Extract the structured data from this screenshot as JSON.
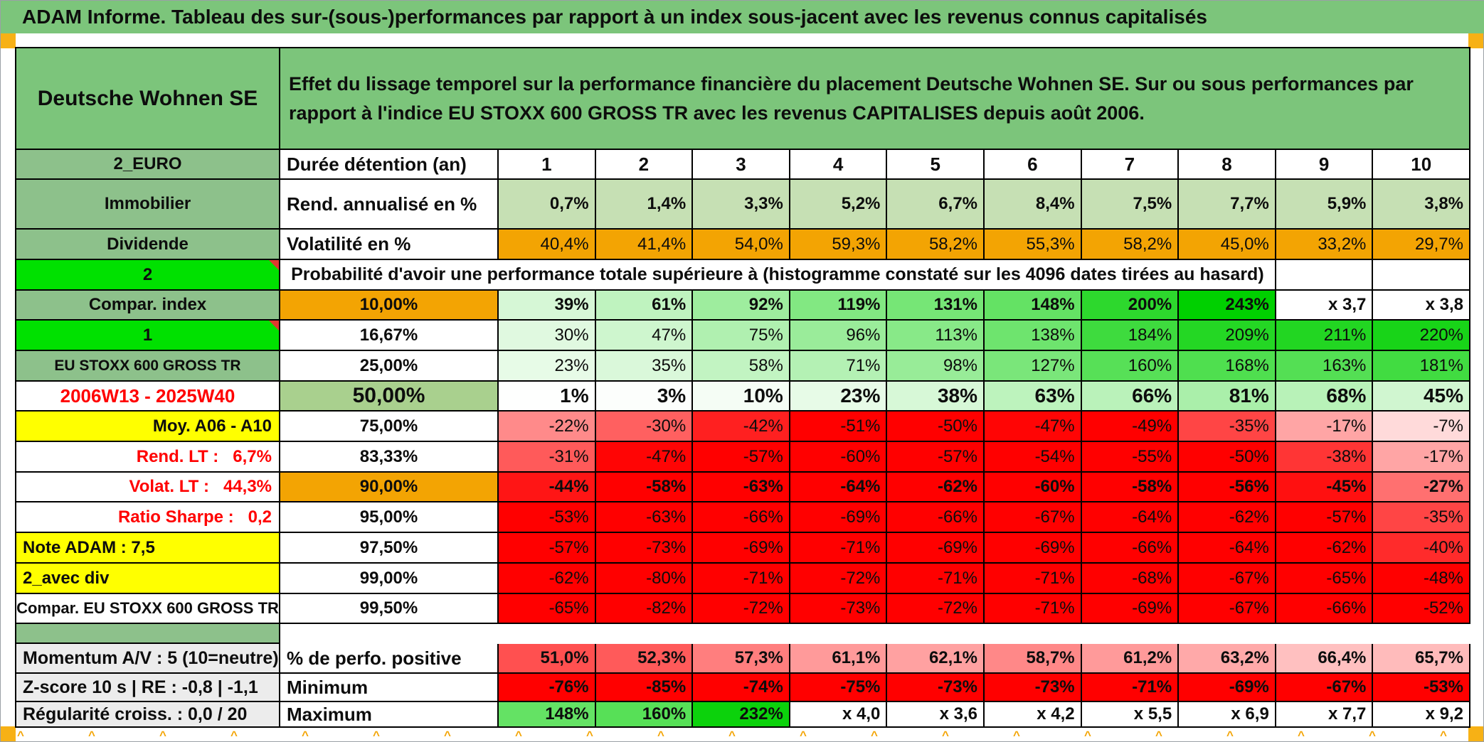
{
  "title": "ADAM Informe. Tableau des sur-(sous-)performances par rapport à un index sous-jacent avec les revenus connus capitalisés",
  "header": {
    "name": "Deutsche Wohnen SE",
    "description": "Effet du lissage temporel sur la performance financière du placement Deutsche Wohnen SE. Sur ou sous performances par rapport à l'indice EU STOXX 600 GROSS TR avec les revenus CAPITALISES depuis août 2006."
  },
  "sections": {
    "top_rows": [
      {
        "label": "2_EURO",
        "metric": "Durée détention (an)",
        "values": [
          "1",
          "2",
          "3",
          "4",
          "5",
          "6",
          "7",
          "8",
          "9",
          "10"
        ]
      },
      {
        "label": "Immobilier",
        "metric": "Rend. annualisé en %",
        "values": [
          "0,7%",
          "1,4%",
          "3,3%",
          "5,2%",
          "6,7%",
          "8,4%",
          "7,5%",
          "7,7%",
          "5,9%",
          "3,8%"
        ]
      },
      {
        "label": "Dividende",
        "metric": "Volatilité en %",
        "values": [
          "40,4%",
          "41,4%",
          "54,0%",
          "59,3%",
          "58,2%",
          "55,3%",
          "58,2%",
          "45,0%",
          "33,2%",
          "29,7%"
        ]
      }
    ],
    "prob_header": {
      "label": "2",
      "text": "Probabilité d'avoir une performance totale supérieure à (histogramme constaté sur les 4096 dates tirées au hasard)"
    },
    "prob_rows": [
      {
        "label": "Compar. index",
        "threshold": "10,00%",
        "values": [
          "39%",
          "61%",
          "92%",
          "119%",
          "131%",
          "148%",
          "200%",
          "243%",
          "x 3,7",
          "x 3,8"
        ]
      },
      {
        "label": "1",
        "threshold": "16,67%",
        "values": [
          "30%",
          "47%",
          "75%",
          "96%",
          "113%",
          "138%",
          "184%",
          "209%",
          "211%",
          "220%"
        ]
      },
      {
        "label": "EU STOXX 600 GROSS TR",
        "threshold": "25,00%",
        "values": [
          "23%",
          "35%",
          "58%",
          "71%",
          "98%",
          "127%",
          "160%",
          "168%",
          "163%",
          "181%"
        ]
      },
      {
        "label": "2006W13 - 2025W40",
        "threshold": "50,00%",
        "values": [
          "1%",
          "3%",
          "10%",
          "23%",
          "38%",
          "63%",
          "66%",
          "81%",
          "68%",
          "45%"
        ]
      },
      {
        "label": "Moy. A06 - A10",
        "threshold": "75,00%",
        "values": [
          "-22%",
          "-30%",
          "-42%",
          "-51%",
          "-50%",
          "-47%",
          "-49%",
          "-35%",
          "-17%",
          "-7%"
        ]
      },
      {
        "label": "Rend. LT :   6,7%",
        "threshold": "83,33%",
        "values": [
          "-31%",
          "-47%",
          "-57%",
          "-60%",
          "-57%",
          "-54%",
          "-55%",
          "-50%",
          "-38%",
          "-17%"
        ]
      },
      {
        "label": "Volat. LT :   44,3%",
        "threshold": "90,00%",
        "values": [
          "-44%",
          "-58%",
          "-63%",
          "-64%",
          "-62%",
          "-60%",
          "-58%",
          "-56%",
          "-45%",
          "-27%"
        ]
      },
      {
        "label": "Ratio Sharpe :   0,2",
        "threshold": "95,00%",
        "values": [
          "-53%",
          "-63%",
          "-66%",
          "-69%",
          "-66%",
          "-67%",
          "-64%",
          "-62%",
          "-57%",
          "-35%"
        ]
      },
      {
        "label": "Note ADAM : 7,5",
        "threshold": "97,50%",
        "values": [
          "-57%",
          "-73%",
          "-69%",
          "-71%",
          "-69%",
          "-69%",
          "-66%",
          "-64%",
          "-62%",
          "-40%"
        ]
      },
      {
        "label": "2_avec div",
        "threshold": "99,00%",
        "values": [
          "-62%",
          "-80%",
          "-71%",
          "-72%",
          "-71%",
          "-71%",
          "-68%",
          "-67%",
          "-65%",
          "-48%"
        ]
      },
      {
        "label": "Compar. EU STOXX 600 GROSS TR",
        "threshold": "99,50%",
        "values": [
          "-65%",
          "-82%",
          "-72%",
          "-73%",
          "-72%",
          "-71%",
          "-69%",
          "-67%",
          "-66%",
          "-52%"
        ]
      }
    ],
    "footer_rows": [
      {
        "label": "Momentum A/V : 5 (10=neutre)",
        "metric": "% de perfo. positive",
        "values": [
          "51,0%",
          "52,3%",
          "57,3%",
          "61,1%",
          "62,1%",
          "58,7%",
          "61,2%",
          "63,2%",
          "66,4%",
          "65,7%"
        ]
      },
      {
        "label": "Z-score 10 s | RE : -0,8 | -1,1",
        "metric": "Minimum",
        "values": [
          "-76%",
          "-85%",
          "-74%",
          "-75%",
          "-73%",
          "-73%",
          "-71%",
          "-69%",
          "-67%",
          "-53%"
        ]
      },
      {
        "label": "Régularité croiss. : 0,0 / 20",
        "metric": "Maximum",
        "values": [
          "148%",
          "160%",
          "232%",
          "x 4,0",
          "x 3,6",
          "x 4,2",
          "x 5,5",
          "x 6,9",
          "x 7,7",
          "x 9,2"
        ]
      }
    ]
  },
  "colors": {
    "title_green": "#7cc57b",
    "label_green": "#8dc18b",
    "lime": "#00e100",
    "orange": "#f3a403",
    "corner_orange": "#f7b115",
    "yellow": "#ffff00",
    "mid_green": "#a9d08e",
    "light_green_row": "#c6e0b4",
    "gray_label": "#ececec",
    "red_text": "#ff0000",
    "scale_green": "#00d000",
    "scale_red": "#ff0000"
  }
}
